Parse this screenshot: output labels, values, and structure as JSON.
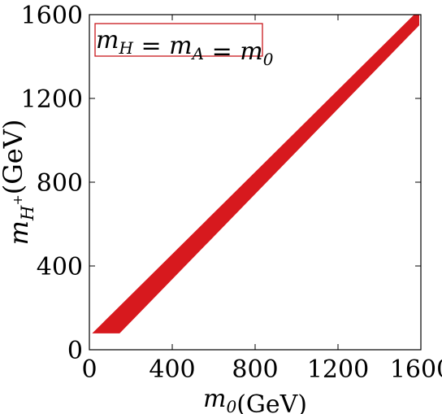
{
  "chart_data": {
    "type": "area",
    "title": "",
    "xlabel": {
      "var": "m",
      "sub": "0",
      "unit": "(GeV)"
    },
    "ylabel": {
      "var": "m",
      "sub": "H",
      "sup": "+",
      "unit": "(GeV)"
    },
    "xlim": [
      0,
      1600
    ],
    "ylim": [
      0,
      1600
    ],
    "xticks": [
      0,
      400,
      800,
      1200,
      1600
    ],
    "yticks": [
      0,
      400,
      800,
      1200,
      1600
    ],
    "xtick_labels": [
      "0",
      "400",
      "800",
      "1200",
      "1600"
    ],
    "ytick_labels": [
      "0",
      "400",
      "800",
      "1200",
      "1600"
    ],
    "grid": false,
    "legend": {
      "placement": "top-left",
      "parts": [
        {
          "var": "m",
          "sub": "H"
        },
        {
          "text": " = "
        },
        {
          "var": "m",
          "sub": "A"
        },
        {
          "text": " = "
        },
        {
          "var": "m",
          "sub": "0"
        }
      ]
    },
    "series": [
      {
        "fill_color": "#d7191e",
        "region": [
          [
            18,
            80
          ],
          [
            145,
            80
          ],
          [
            1590,
            1550
          ],
          [
            1590,
            1600
          ],
          [
            1570,
            1600
          ],
          [
            18,
            80
          ]
        ]
      }
    ]
  }
}
